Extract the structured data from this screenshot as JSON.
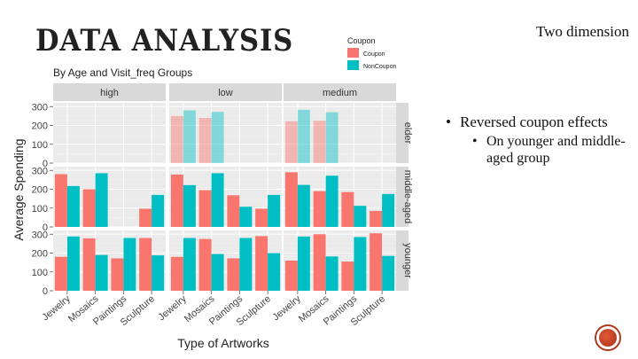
{
  "slide": {
    "title": "DATA ANALYSIS",
    "corner_label": "Two dimension",
    "bullet": "Reversed coupon effects",
    "subbullet": "On younger and middle-aged group"
  },
  "colors": {
    "coupon": "#F8766D",
    "noncoupon": "#00BFC4",
    "panel_bg": "#EBEBEB",
    "strip_bg": "#D9D9D9"
  },
  "chart_data": {
    "type": "bar",
    "title": "By Age and Visit_freq Groups",
    "xlabel": "Type of Artworks",
    "ylabel": "Average Spending",
    "legend_title": "Coupon",
    "legend": [
      "Coupon",
      "NonCoupon"
    ],
    "legend_position": "top-right",
    "categories": [
      "Jewelry",
      "Mosaics",
      "Paintings",
      "Sculpture"
    ],
    "columns": [
      "high",
      "low",
      "medium"
    ],
    "rows": [
      "elder",
      "middle-aged",
      "younger"
    ],
    "yticks": [
      "0",
      "100",
      "200",
      "300"
    ],
    "ylim": [
      0,
      320
    ],
    "grid": true,
    "faded_row": "elder",
    "panels": [
      {
        "row": "elder",
        "col": "high",
        "coupon": [
          null,
          null,
          null,
          null
        ],
        "noncoupon": [
          null,
          null,
          null,
          null
        ]
      },
      {
        "row": "elder",
        "col": "low",
        "coupon": [
          250,
          240,
          null,
          null
        ],
        "noncoupon": [
          280,
          272,
          null,
          null
        ]
      },
      {
        "row": "elder",
        "col": "medium",
        "coupon": [
          222,
          225,
          null,
          null
        ],
        "noncoupon": [
          283,
          270,
          null,
          null
        ]
      },
      {
        "row": "middle-aged",
        "col": "high",
        "coupon": [
          280,
          200,
          null,
          97
        ],
        "noncoupon": [
          217,
          285,
          null,
          170
        ]
      },
      {
        "row": "middle-aged",
        "col": "low",
        "coupon": [
          278,
          195,
          168,
          97
        ],
        "noncoupon": [
          222,
          285,
          107,
          170
        ]
      },
      {
        "row": "middle-aged",
        "col": "medium",
        "coupon": [
          290,
          190,
          185,
          85
        ],
        "noncoupon": [
          223,
          272,
          112,
          175
        ]
      },
      {
        "row": "younger",
        "col": "high",
        "coupon": [
          180,
          278,
          172,
          280
        ],
        "noncoupon": [
          288,
          190,
          280,
          188
        ]
      },
      {
        "row": "younger",
        "col": "low",
        "coupon": [
          180,
          275,
          172,
          290
        ],
        "noncoupon": [
          280,
          195,
          280,
          200
        ]
      },
      {
        "row": "younger",
        "col": "medium",
        "coupon": [
          160,
          300,
          155,
          305
        ],
        "noncoupon": [
          288,
          182,
          285,
          185
        ]
      }
    ]
  }
}
